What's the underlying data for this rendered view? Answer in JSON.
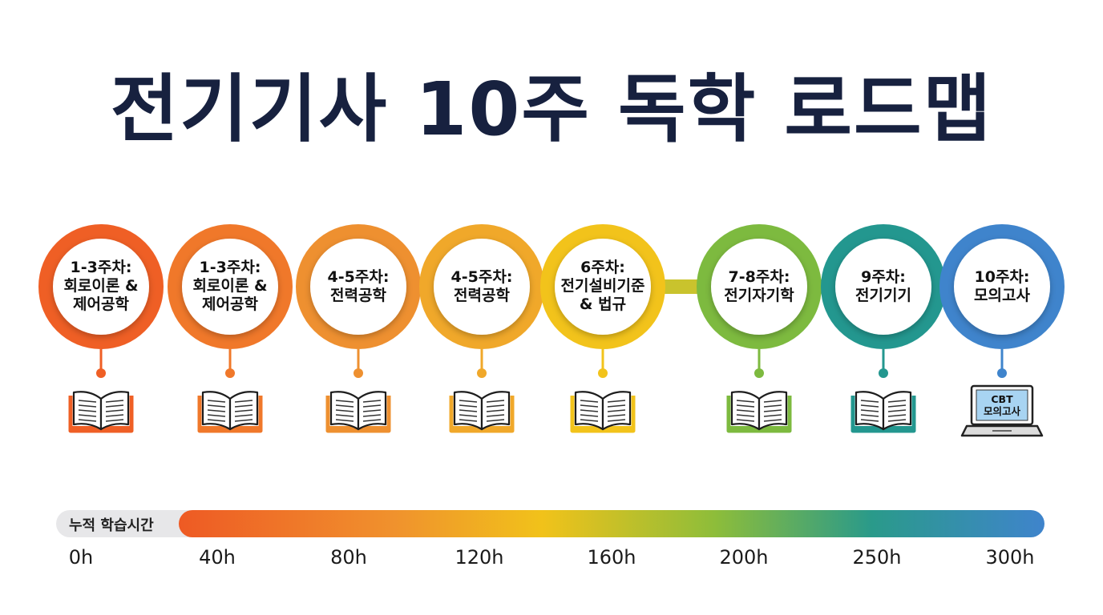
{
  "title": "전기기사 10주 독학 로드맵",
  "stages": [
    {
      "label": "1-3주차:\n회로이론 &\n제어공학",
      "color": "#ef5f25",
      "icon": "book-icon"
    },
    {
      "label": "1-3주차:\n회로이론 &\n제어공학",
      "color": "#f0782a",
      "icon": "book-icon"
    },
    {
      "label": "4-5주차:\n전력공학",
      "color": "#ee9030",
      "icon": "book-icon"
    },
    {
      "label": "4-5주차:\n전력공학",
      "color": "#f0a82a",
      "icon": "book-icon"
    },
    {
      "label": "6주차:\n전기설비기준\n& 법규",
      "color": "#f2c31b",
      "icon": "book-icon"
    },
    {
      "label": "7-8주차:\n전기자기학",
      "color": "#7dba3f",
      "icon": "book-icon"
    },
    {
      "label": "9주차:\n전기기기",
      "color": "#23978f",
      "icon": "book-icon"
    },
    {
      "label": "10주차:\n모의고사",
      "color": "#3f84cc",
      "icon": "laptop-icon"
    }
  ],
  "laptop_screen_text": "CBT\n모의고사",
  "timeline": {
    "label": "누적 학습시간",
    "ticks": [
      "0h",
      "40h",
      "80h",
      "120h",
      "160h",
      "200h",
      "250h",
      "300h"
    ]
  }
}
